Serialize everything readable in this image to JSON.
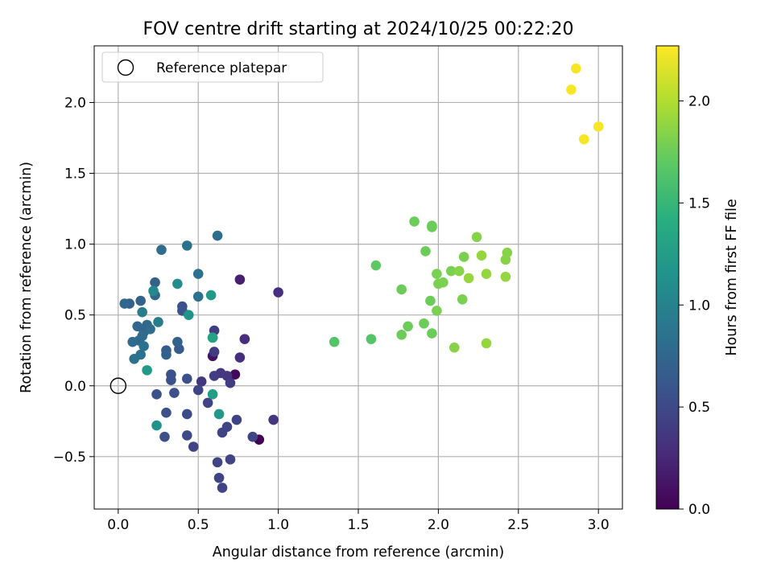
{
  "chart_data": {
    "type": "scatter",
    "title": "FOV centre drift starting at 2024/10/25 00:22:20",
    "xlabel": "Angular distance from reference (arcmin)",
    "ylabel": "Rotation from reference (arcmin)",
    "xlim": [
      -0.15,
      3.15
    ],
    "ylim": [
      -0.87,
      2.4
    ],
    "xticks": [
      0.0,
      0.5,
      1.0,
      1.5,
      2.0,
      2.5,
      3.0
    ],
    "xtick_labels": [
      "0.0",
      "0.5",
      "1.0",
      "1.5",
      "2.0",
      "2.5",
      "3.0"
    ],
    "yticks": [
      -0.5,
      0.0,
      0.5,
      1.0,
      1.5,
      2.0
    ],
    "ytick_labels": [
      "−0.5",
      "0.0",
      "0.5",
      "1.0",
      "1.5",
      "2.0"
    ],
    "grid": true,
    "legend": {
      "location": "upper-left",
      "entries": [
        "Reference platepar"
      ]
    },
    "reference_point": {
      "x": 0.0,
      "y": 0.0
    },
    "colorbar": {
      "label": "Hours from first FF file",
      "colormap": "viridis",
      "range": [
        0.0,
        2.27
      ],
      "ticks": [
        0.0,
        0.5,
        1.0,
        1.5,
        2.0
      ],
      "tick_labels": [
        "0.0",
        "0.5",
        "1.0",
        "1.5",
        "2.0"
      ]
    },
    "points": [
      {
        "x": 0.88,
        "y": -0.38,
        "c": 0.0
      },
      {
        "x": 0.73,
        "y": 0.08,
        "c": 0.05
      },
      {
        "x": 0.59,
        "y": 0.21,
        "c": 0.1
      },
      {
        "x": 0.76,
        "y": 0.75,
        "c": 0.2
      },
      {
        "x": 1.0,
        "y": 0.66,
        "c": 0.3
      },
      {
        "x": 0.97,
        "y": -0.24,
        "c": 0.35
      },
      {
        "x": 0.76,
        "y": 0.2,
        "c": 0.3
      },
      {
        "x": 0.79,
        "y": 0.33,
        "c": 0.3
      },
      {
        "x": 0.6,
        "y": 0.24,
        "c": 0.4
      },
      {
        "x": 0.6,
        "y": 0.39,
        "c": 0.4
      },
      {
        "x": 0.52,
        "y": 0.03,
        "c": 0.35
      },
      {
        "x": 0.64,
        "y": 0.09,
        "c": 0.35
      },
      {
        "x": 0.6,
        "y": 0.07,
        "c": 0.4
      },
      {
        "x": 0.68,
        "y": 0.07,
        "c": 0.35
      },
      {
        "x": 0.7,
        "y": 0.02,
        "c": 0.4
      },
      {
        "x": 0.5,
        "y": -0.03,
        "c": 0.45
      },
      {
        "x": 0.56,
        "y": -0.12,
        "c": 0.45
      },
      {
        "x": 0.74,
        "y": -0.24,
        "c": 0.45
      },
      {
        "x": 0.68,
        "y": -0.29,
        "c": 0.45
      },
      {
        "x": 0.65,
        "y": -0.33,
        "c": 0.45
      },
      {
        "x": 0.84,
        "y": -0.36,
        "c": 0.45
      },
      {
        "x": 0.47,
        "y": -0.43,
        "c": 0.45
      },
      {
        "x": 0.62,
        "y": -0.54,
        "c": 0.45
      },
      {
        "x": 0.7,
        "y": -0.52,
        "c": 0.45
      },
      {
        "x": 0.63,
        "y": -0.65,
        "c": 0.45
      },
      {
        "x": 0.65,
        "y": -0.72,
        "c": 0.45
      },
      {
        "x": 0.43,
        "y": -0.35,
        "c": 0.5
      },
      {
        "x": 0.43,
        "y": -0.2,
        "c": 0.5
      },
      {
        "x": 0.3,
        "y": -0.19,
        "c": 0.55
      },
      {
        "x": 0.29,
        "y": -0.36,
        "c": 0.55
      },
      {
        "x": 0.24,
        "y": -0.06,
        "c": 0.55
      },
      {
        "x": 0.35,
        "y": -0.05,
        "c": 0.55
      },
      {
        "x": 0.33,
        "y": 0.04,
        "c": 0.55
      },
      {
        "x": 0.43,
        "y": 0.05,
        "c": 0.55
      },
      {
        "x": 0.33,
        "y": 0.08,
        "c": 0.55
      },
      {
        "x": 0.4,
        "y": 0.56,
        "c": 0.55
      },
      {
        "x": 0.4,
        "y": 0.53,
        "c": 0.6
      },
      {
        "x": 0.38,
        "y": 0.26,
        "c": 0.65
      },
      {
        "x": 0.3,
        "y": 0.25,
        "c": 0.65
      },
      {
        "x": 0.37,
        "y": 0.31,
        "c": 0.7
      },
      {
        "x": 0.3,
        "y": 0.22,
        "c": 0.7
      },
      {
        "x": 0.23,
        "y": 0.73,
        "c": 0.7
      },
      {
        "x": 0.14,
        "y": 0.6,
        "c": 0.7
      },
      {
        "x": 0.23,
        "y": 0.64,
        "c": 0.75
      },
      {
        "x": 0.07,
        "y": 0.58,
        "c": 0.7
      },
      {
        "x": 0.04,
        "y": 0.58,
        "c": 0.75
      },
      {
        "x": 0.16,
        "y": 0.38,
        "c": 0.75
      },
      {
        "x": 0.12,
        "y": 0.42,
        "c": 0.75
      },
      {
        "x": 0.18,
        "y": 0.43,
        "c": 0.75
      },
      {
        "x": 0.2,
        "y": 0.4,
        "c": 0.8
      },
      {
        "x": 0.13,
        "y": 0.32,
        "c": 0.75
      },
      {
        "x": 0.15,
        "y": 0.35,
        "c": 0.8
      },
      {
        "x": 0.09,
        "y": 0.31,
        "c": 0.8
      },
      {
        "x": 0.16,
        "y": 0.28,
        "c": 0.85
      },
      {
        "x": 0.14,
        "y": 0.22,
        "c": 0.85
      },
      {
        "x": 0.1,
        "y": 0.19,
        "c": 0.85
      },
      {
        "x": 0.5,
        "y": 0.63,
        "c": 0.85
      },
      {
        "x": 0.5,
        "y": 0.79,
        "c": 0.85
      },
      {
        "x": 0.43,
        "y": 0.99,
        "c": 0.85
      },
      {
        "x": 0.27,
        "y": 0.96,
        "c": 0.8
      },
      {
        "x": 0.62,
        "y": 1.06,
        "c": 0.8
      },
      {
        "x": 0.15,
        "y": 0.52,
        "c": 0.95
      },
      {
        "x": 0.25,
        "y": 0.45,
        "c": 0.95
      },
      {
        "x": 0.22,
        "y": 0.67,
        "c": 1.05
      },
      {
        "x": 0.37,
        "y": 0.72,
        "c": 1.1
      },
      {
        "x": 0.44,
        "y": 0.5,
        "c": 1.15
      },
      {
        "x": 0.58,
        "y": 0.64,
        "c": 1.2
      },
      {
        "x": 0.59,
        "y": 0.34,
        "c": 1.2
      },
      {
        "x": 0.18,
        "y": 0.11,
        "c": 1.2
      },
      {
        "x": 0.24,
        "y": -0.28,
        "c": 1.15
      },
      {
        "x": 0.63,
        "y": -0.2,
        "c": 1.2
      },
      {
        "x": 0.59,
        "y": -0.06,
        "c": 1.25
      },
      {
        "x": 0.59,
        "y": 0.34,
        "c": 1.3
      },
      {
        "x": 1.35,
        "y": 0.31,
        "c": 1.65
      },
      {
        "x": 1.58,
        "y": 0.33,
        "c": 1.65
      },
      {
        "x": 1.61,
        "y": 0.85,
        "c": 1.7
      },
      {
        "x": 1.77,
        "y": 0.68,
        "c": 1.75
      },
      {
        "x": 1.77,
        "y": 0.36,
        "c": 1.75
      },
      {
        "x": 1.81,
        "y": 0.42,
        "c": 1.75
      },
      {
        "x": 1.85,
        "y": 1.16,
        "c": 1.75
      },
      {
        "x": 1.92,
        "y": 0.95,
        "c": 1.75
      },
      {
        "x": 1.91,
        "y": 0.44,
        "c": 1.75
      },
      {
        "x": 1.96,
        "y": 1.13,
        "c": 1.75
      },
      {
        "x": 1.96,
        "y": 1.12,
        "c": 1.75
      },
      {
        "x": 1.95,
        "y": 0.6,
        "c": 1.75
      },
      {
        "x": 1.96,
        "y": 0.37,
        "c": 1.75
      },
      {
        "x": 1.99,
        "y": 0.53,
        "c": 1.8
      },
      {
        "x": 2.0,
        "y": 0.72,
        "c": 1.8
      },
      {
        "x": 1.99,
        "y": 0.79,
        "c": 1.8
      },
      {
        "x": 2.03,
        "y": 0.73,
        "c": 1.8
      },
      {
        "x": 2.08,
        "y": 0.81,
        "c": 1.8
      },
      {
        "x": 2.1,
        "y": 0.27,
        "c": 1.85
      },
      {
        "x": 2.15,
        "y": 0.61,
        "c": 1.8
      },
      {
        "x": 2.16,
        "y": 0.91,
        "c": 1.8
      },
      {
        "x": 2.13,
        "y": 0.81,
        "c": 1.85
      },
      {
        "x": 2.19,
        "y": 0.76,
        "c": 1.9
      },
      {
        "x": 2.24,
        "y": 1.05,
        "c": 1.85
      },
      {
        "x": 2.27,
        "y": 0.92,
        "c": 1.9
      },
      {
        "x": 2.3,
        "y": 0.79,
        "c": 1.9
      },
      {
        "x": 2.3,
        "y": 0.3,
        "c": 1.9
      },
      {
        "x": 2.42,
        "y": 0.89,
        "c": 1.85
      },
      {
        "x": 2.43,
        "y": 0.94,
        "c": 1.85
      },
      {
        "x": 2.42,
        "y": 0.77,
        "c": 1.9
      },
      {
        "x": 2.83,
        "y": 2.09,
        "c": 2.25
      },
      {
        "x": 2.86,
        "y": 2.24,
        "c": 2.25
      },
      {
        "x": 2.91,
        "y": 1.74,
        "c": 2.25
      },
      {
        "x": 3.0,
        "y": 1.83,
        "c": 2.25
      }
    ]
  }
}
